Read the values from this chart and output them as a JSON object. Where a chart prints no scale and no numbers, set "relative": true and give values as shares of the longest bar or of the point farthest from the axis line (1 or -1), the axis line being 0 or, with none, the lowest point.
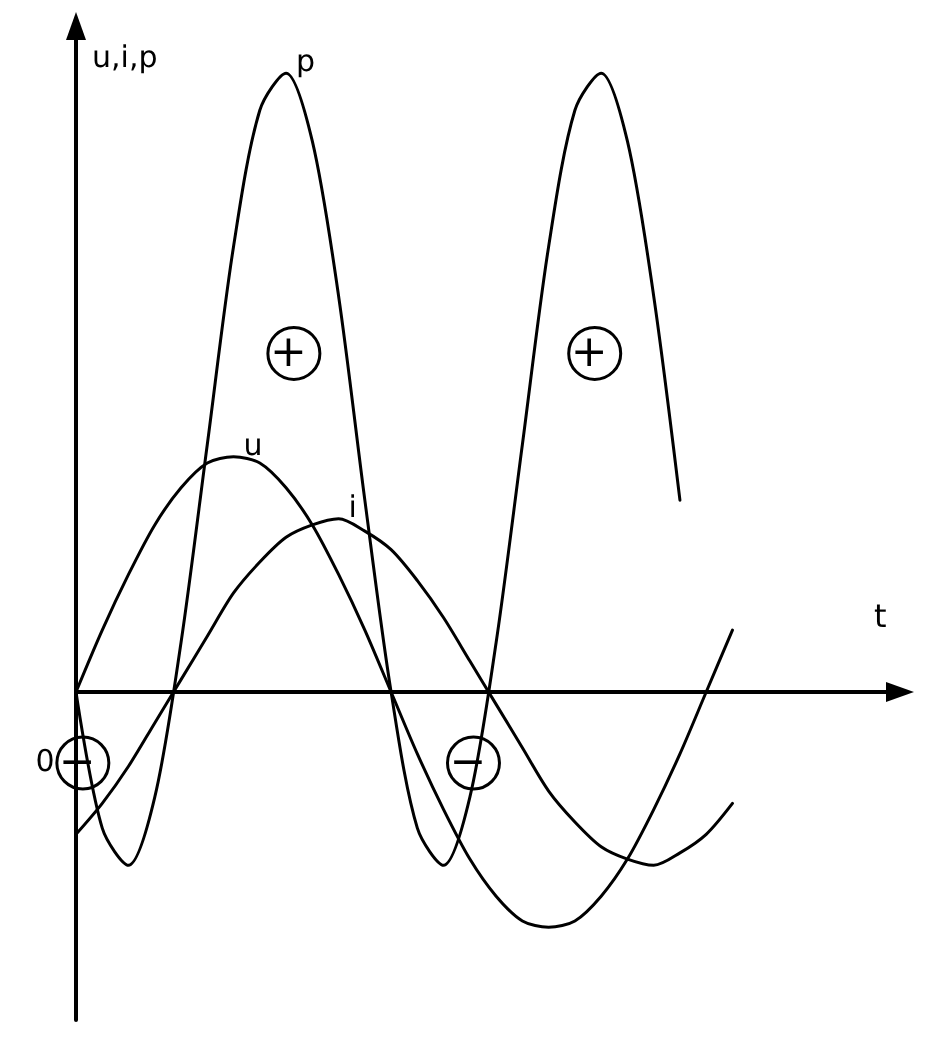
{
  "chart_data": {
    "type": "line",
    "relative": true,
    "xlabel": "t",
    "ylabel": "u,i,p",
    "marker": "none",
    "line_style": "solid",
    "grid": false,
    "legend": false,
    "categories": [
      null,
      null,
      null,
      null,
      null,
      null,
      null,
      null,
      null,
      null,
      null,
      null,
      null,
      null,
      null,
      null,
      null,
      null,
      null,
      null,
      null,
      null,
      null,
      null,
      null,
      null,
      null,
      null,
      null,
      null,
      null,
      null
    ],
    "series": [
      {
        "name": "u",
        "color": "#000000",
        "values": [
          0,
          0.1,
          0.19,
          0.27,
          0.33,
          0.37,
          0.38,
          0.37,
          0.33,
          0.27,
          0.19,
          0.1,
          0,
          -0.1,
          -0.19,
          -0.27,
          -0.33,
          -0.37,
          -0.38,
          -0.37,
          -0.33,
          -0.27,
          -0.19,
          -0.1,
          0,
          0.1,
          null,
          null,
          null,
          null,
          null,
          null
        ]
      },
      {
        "name": "i",
        "color": "#000000",
        "values": [
          -0.23,
          -0.18,
          -0.12,
          -0.05,
          0.02,
          0.09,
          0.16,
          0.21,
          0.25,
          0.27,
          0.28,
          0.26,
          0.23,
          0.18,
          0.12,
          0.05,
          -0.02,
          -0.09,
          -0.16,
          -0.21,
          -0.25,
          -0.27,
          -0.28,
          -0.26,
          -0.23,
          -0.18,
          null,
          null,
          null,
          null,
          null,
          null
        ]
      },
      {
        "name": "p",
        "color": "#000000",
        "values": [
          0,
          -0.22,
          -0.28,
          -0.17,
          0.08,
          0.4,
          0.72,
          0.94,
          1.0,
          0.89,
          0.64,
          0.31,
          0,
          -0.22,
          -0.28,
          -0.17,
          0.08,
          0.4,
          0.72,
          0.94,
          1.0,
          0.89,
          0.64,
          0.31,
          null,
          null,
          null,
          null,
          null,
          null,
          null,
          null
        ]
      }
    ],
    "annotations": [
      "0",
      "+",
      "+",
      "−",
      "−"
    ]
  }
}
